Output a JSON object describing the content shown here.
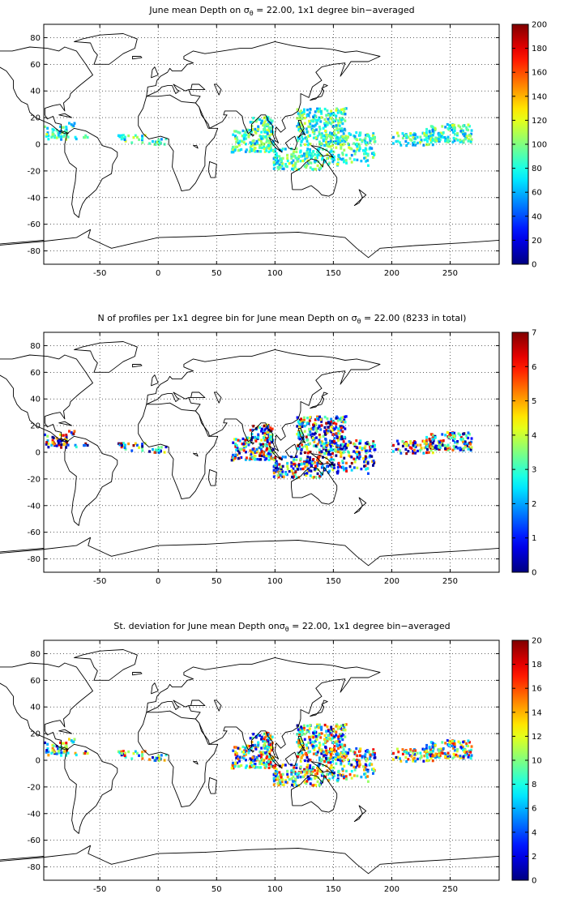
{
  "panels": [
    {
      "id": "mean-depth",
      "title_pre": "June mean Depth on ",
      "title_sym": "σ",
      "title_sub": "θ",
      "title_post": " = 22.00, 1x1 degree bin−averaged",
      "colorbar_ticks": [
        "0",
        "20",
        "40",
        "60",
        "80",
        "100",
        "120",
        "140",
        "160",
        "180",
        "200"
      ]
    },
    {
      "id": "profile-count",
      "title_pre": "N of profiles per 1x1 degree bin for June mean Depth on ",
      "title_sym": "σ",
      "title_sub": "θ",
      "title_post": " = 22.00 (8233 in total)",
      "colorbar_ticks": [
        "0",
        "1",
        "2",
        "3",
        "4",
        "5",
        "6",
        "7"
      ]
    },
    {
      "id": "std-deviation",
      "title_pre": "St. deviation for June mean Depth on",
      "title_sym": "σ",
      "title_sub": "θ",
      "title_post": " = 22.00, 1x1 degree bin−averaged",
      "colorbar_ticks": [
        "0",
        "2",
        "4",
        "6",
        "8",
        "10",
        "12",
        "14",
        "16",
        "18",
        "20"
      ]
    }
  ],
  "axes": {
    "x_ticks": [
      "-50",
      "0",
      "50",
      "100",
      "150",
      "200",
      "250"
    ],
    "y_ticks": [
      "80",
      "60",
      "40",
      "20",
      "0",
      "-20",
      "-40",
      "-60",
      "-80"
    ],
    "xlim": [
      -98,
      292
    ],
    "ylim": [
      -90,
      90
    ],
    "grid": "dotted"
  },
  "colormap": "jet",
  "colors": {
    "coast": "#000000",
    "grid": "#000000",
    "jet_low": "#00008f",
    "jet_mid": "#7fff7f",
    "jet_high": "#800000"
  }
}
